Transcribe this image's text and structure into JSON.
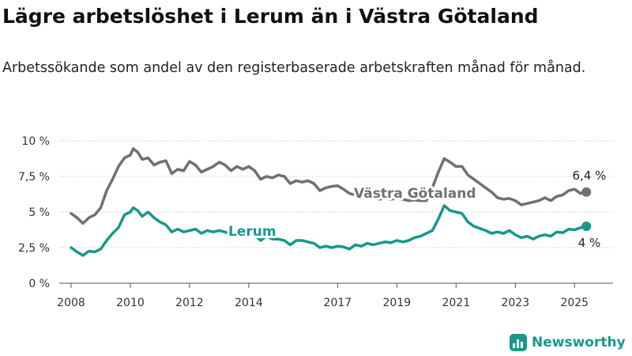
{
  "header": {
    "title": "Lägre arbetslöshet i Lerum än i Västra Götaland",
    "subtitle": "Arbetssökande som andel av den registerbaserade arbetskraften månad för månad."
  },
  "colors": {
    "vastra_gotaland": "#707070",
    "lerum": "#16988a",
    "grid": "#d6d6d6",
    "axis": "#555555",
    "text": "#333333"
  },
  "brand": {
    "name": "Newsworthy",
    "icon": "bar-chart-logo-icon"
  },
  "chart_data": {
    "type": "line",
    "y_ticks": [
      {
        "value": 0,
        "label": "0 %"
      },
      {
        "value": 2.5,
        "label": "2,5 %"
      },
      {
        "value": 5,
        "label": "5 %"
      },
      {
        "value": 7.5,
        "label": "7,5 %"
      },
      {
        "value": 10,
        "label": "10 %"
      }
    ],
    "x_ticks": [
      {
        "value": 2008,
        "label": "2008"
      },
      {
        "value": 2010,
        "label": "2010"
      },
      {
        "value": 2012,
        "label": "2012"
      },
      {
        "value": 2014,
        "label": "2014"
      },
      {
        "value": 2017,
        "label": "2017"
      },
      {
        "value": 2019,
        "label": "2019"
      },
      {
        "value": 2021,
        "label": "2021"
      },
      {
        "value": 2023,
        "label": "2023"
      },
      {
        "value": 2025,
        "label": "2025"
      }
    ],
    "xlim": [
      2007.6,
      2026.3
    ],
    "ylim": [
      0,
      10
    ],
    "grid": "horizontal",
    "series": [
      {
        "name": "Västra Götaland",
        "color": "#707070",
        "end_label": "6,4 %",
        "points": [
          [
            2008.0,
            4.9
          ],
          [
            2008.2,
            4.6
          ],
          [
            2008.4,
            4.2
          ],
          [
            2008.6,
            4.6
          ],
          [
            2008.8,
            4.8
          ],
          [
            2009.0,
            5.3
          ],
          [
            2009.2,
            6.5
          ],
          [
            2009.4,
            7.3
          ],
          [
            2009.6,
            8.2
          ],
          [
            2009.8,
            8.8
          ],
          [
            2010.0,
            9.0
          ],
          [
            2010.1,
            9.45
          ],
          [
            2010.25,
            9.2
          ],
          [
            2010.4,
            8.7
          ],
          [
            2010.6,
            8.8
          ],
          [
            2010.8,
            8.3
          ],
          [
            2011.0,
            8.5
          ],
          [
            2011.2,
            8.6
          ],
          [
            2011.4,
            7.7
          ],
          [
            2011.6,
            8.0
          ],
          [
            2011.8,
            7.9
          ],
          [
            2012.0,
            8.55
          ],
          [
            2012.2,
            8.3
          ],
          [
            2012.4,
            7.8
          ],
          [
            2012.6,
            8.0
          ],
          [
            2012.8,
            8.2
          ],
          [
            2013.0,
            8.5
          ],
          [
            2013.2,
            8.3
          ],
          [
            2013.4,
            7.9
          ],
          [
            2013.6,
            8.2
          ],
          [
            2013.8,
            8.0
          ],
          [
            2014.0,
            8.2
          ],
          [
            2014.2,
            7.9
          ],
          [
            2014.4,
            7.3
          ],
          [
            2014.6,
            7.5
          ],
          [
            2014.8,
            7.4
          ],
          [
            2015.0,
            7.6
          ],
          [
            2015.2,
            7.5
          ],
          [
            2015.4,
            7.0
          ],
          [
            2015.6,
            7.2
          ],
          [
            2015.8,
            7.1
          ],
          [
            2016.0,
            7.2
          ],
          [
            2016.2,
            7.0
          ],
          [
            2016.4,
            6.5
          ],
          [
            2016.6,
            6.7
          ],
          [
            2016.8,
            6.8
          ],
          [
            2017.0,
            6.85
          ],
          [
            2017.2,
            6.6
          ],
          [
            2017.4,
            6.3
          ],
          [
            2017.6,
            6.2
          ],
          [
            2017.8,
            6.0
          ],
          [
            2018.0,
            6.1
          ],
          [
            2018.2,
            6.0
          ],
          [
            2018.4,
            5.9
          ],
          [
            2018.6,
            5.95
          ],
          [
            2018.8,
            5.9
          ],
          [
            2019.0,
            5.95
          ],
          [
            2019.2,
            5.9
          ],
          [
            2019.4,
            5.8
          ],
          [
            2019.6,
            5.85
          ],
          [
            2019.8,
            5.8
          ],
          [
            2020.0,
            5.8
          ],
          [
            2020.2,
            6.7
          ],
          [
            2020.4,
            7.8
          ],
          [
            2020.6,
            8.75
          ],
          [
            2020.8,
            8.5
          ],
          [
            2021.0,
            8.2
          ],
          [
            2021.2,
            8.2
          ],
          [
            2021.4,
            7.6
          ],
          [
            2021.6,
            7.3
          ],
          [
            2021.8,
            7.0
          ],
          [
            2022.0,
            6.7
          ],
          [
            2022.2,
            6.4
          ],
          [
            2022.4,
            6.0
          ],
          [
            2022.6,
            5.9
          ],
          [
            2022.8,
            5.95
          ],
          [
            2023.0,
            5.8
          ],
          [
            2023.2,
            5.5
          ],
          [
            2023.4,
            5.6
          ],
          [
            2023.6,
            5.7
          ],
          [
            2023.8,
            5.8
          ],
          [
            2024.0,
            6.0
          ],
          [
            2024.2,
            5.8
          ],
          [
            2024.4,
            6.1
          ],
          [
            2024.6,
            6.2
          ],
          [
            2024.8,
            6.5
          ],
          [
            2025.0,
            6.6
          ],
          [
            2025.2,
            6.3
          ],
          [
            2025.4,
            6.4
          ]
        ]
      },
      {
        "name": "Lerum",
        "color": "#16988a",
        "end_label": "4 %",
        "points": [
          [
            2008.0,
            2.5
          ],
          [
            2008.2,
            2.2
          ],
          [
            2008.4,
            1.95
          ],
          [
            2008.6,
            2.25
          ],
          [
            2008.8,
            2.2
          ],
          [
            2009.0,
            2.4
          ],
          [
            2009.2,
            3.0
          ],
          [
            2009.4,
            3.5
          ],
          [
            2009.6,
            3.9
          ],
          [
            2009.8,
            4.8
          ],
          [
            2010.0,
            5.0
          ],
          [
            2010.1,
            5.3
          ],
          [
            2010.25,
            5.1
          ],
          [
            2010.4,
            4.7
          ],
          [
            2010.6,
            5.0
          ],
          [
            2010.8,
            4.6
          ],
          [
            2011.0,
            4.3
          ],
          [
            2011.2,
            4.1
          ],
          [
            2011.4,
            3.6
          ],
          [
            2011.6,
            3.8
          ],
          [
            2011.8,
            3.6
          ],
          [
            2012.0,
            3.7
          ],
          [
            2012.2,
            3.8
          ],
          [
            2012.4,
            3.5
          ],
          [
            2012.6,
            3.7
          ],
          [
            2012.8,
            3.6
          ],
          [
            2013.0,
            3.7
          ],
          [
            2013.2,
            3.6
          ],
          [
            2013.4,
            3.4
          ],
          [
            2013.6,
            3.5
          ],
          [
            2013.8,
            3.4
          ],
          [
            2014.0,
            3.5
          ],
          [
            2014.2,
            3.4
          ],
          [
            2014.4,
            3.0
          ],
          [
            2014.6,
            3.3
          ],
          [
            2014.8,
            3.1
          ],
          [
            2015.0,
            3.1
          ],
          [
            2015.2,
            3.0
          ],
          [
            2015.4,
            2.7
          ],
          [
            2015.6,
            3.0
          ],
          [
            2015.8,
            3.0
          ],
          [
            2016.0,
            2.9
          ],
          [
            2016.2,
            2.8
          ],
          [
            2016.4,
            2.5
          ],
          [
            2016.6,
            2.6
          ],
          [
            2016.8,
            2.5
          ],
          [
            2017.0,
            2.6
          ],
          [
            2017.2,
            2.55
          ],
          [
            2017.4,
            2.4
          ],
          [
            2017.6,
            2.7
          ],
          [
            2017.8,
            2.6
          ],
          [
            2018.0,
            2.8
          ],
          [
            2018.2,
            2.7
          ],
          [
            2018.4,
            2.8
          ],
          [
            2018.6,
            2.9
          ],
          [
            2018.8,
            2.85
          ],
          [
            2019.0,
            3.0
          ],
          [
            2019.2,
            2.9
          ],
          [
            2019.4,
            3.0
          ],
          [
            2019.6,
            3.2
          ],
          [
            2019.8,
            3.3
          ],
          [
            2020.0,
            3.5
          ],
          [
            2020.2,
            3.7
          ],
          [
            2020.4,
            4.5
          ],
          [
            2020.6,
            5.45
          ],
          [
            2020.8,
            5.1
          ],
          [
            2021.0,
            5.0
          ],
          [
            2021.2,
            4.9
          ],
          [
            2021.4,
            4.3
          ],
          [
            2021.6,
            4.0
          ],
          [
            2021.8,
            3.85
          ],
          [
            2022.0,
            3.7
          ],
          [
            2022.2,
            3.5
          ],
          [
            2022.4,
            3.6
          ],
          [
            2022.6,
            3.5
          ],
          [
            2022.8,
            3.7
          ],
          [
            2023.0,
            3.4
          ],
          [
            2023.2,
            3.2
          ],
          [
            2023.4,
            3.3
          ],
          [
            2023.6,
            3.1
          ],
          [
            2023.8,
            3.3
          ],
          [
            2024.0,
            3.4
          ],
          [
            2024.2,
            3.3
          ],
          [
            2024.4,
            3.6
          ],
          [
            2024.6,
            3.55
          ],
          [
            2024.8,
            3.8
          ],
          [
            2025.0,
            3.75
          ],
          [
            2025.2,
            3.9
          ],
          [
            2025.4,
            4.0
          ]
        ]
      }
    ]
  }
}
